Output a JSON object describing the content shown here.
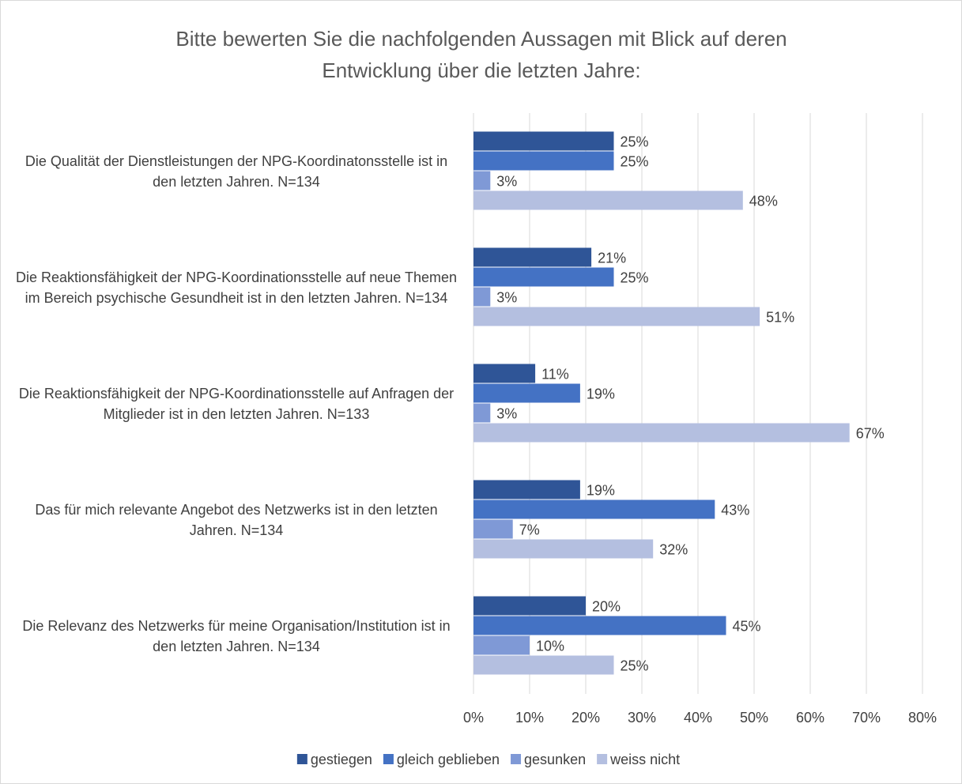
{
  "chart_data": {
    "type": "bar",
    "orientation": "horizontal",
    "title": "Bitte bewerten Sie die nachfolgenden Aussagen mit Blick auf deren Entwicklung über die letzten Jahre:",
    "categories": [
      "Die Qualität der Dienstleistungen der NPG-Koordinatonsstelle ist in den letzten Jahren. N=134",
      "Die Reaktionsfähigkeit der NPG-Koordinationsstelle auf neue Themen im Bereich psychische Gesundheit ist in den letzten Jahren. N=134",
      "Die Reaktionsfähigkeit der NPG-Koordinationsstelle auf Anfragen der Mitglieder ist in den letzten Jahren. N=133",
      "Das für mich relevante Angebot des Netzwerks ist in den letzten Jahren. N=134",
      "Die Relevanz des Netzwerks für meine Organisation/Institution ist in den letzten Jahren. N=134"
    ],
    "series": [
      {
        "name": "gestiegen",
        "color": "#2f5597",
        "values": [
          25,
          21,
          11,
          19,
          20
        ],
        "value_labels": [
          "25%",
          "21%",
          "11%",
          "19%",
          "20%"
        ]
      },
      {
        "name": "gleich geblieben",
        "color": "#4472c4",
        "values": [
          25,
          25,
          19,
          43,
          45
        ],
        "value_labels": [
          "25%",
          "25%",
          "19%",
          "43%",
          "45%"
        ]
      },
      {
        "name": "gesunken",
        "color": "#7f99d6",
        "values": [
          3,
          3,
          3,
          7,
          10
        ],
        "value_labels": [
          "3%",
          "3%",
          "3%",
          "7%",
          "10%"
        ]
      },
      {
        "name": "weiss nicht",
        "color": "#b4bfe0",
        "values": [
          48,
          51,
          67,
          32,
          25
        ],
        "value_labels": [
          "48%",
          "51%",
          "67%",
          "32%",
          "25%"
        ]
      }
    ],
    "xlim": [
      0,
      80
    ],
    "xticks": [
      {
        "value": 0,
        "label": "0%"
      },
      {
        "value": 10,
        "label": "10%"
      },
      {
        "value": 20,
        "label": "20%"
      },
      {
        "value": 30,
        "label": "30%"
      },
      {
        "value": 40,
        "label": "40%"
      },
      {
        "value": 50,
        "label": "50%"
      },
      {
        "value": 60,
        "label": "60%"
      },
      {
        "value": 70,
        "label": "70%"
      },
      {
        "value": 80,
        "label": "80%"
      }
    ],
    "grid": true,
    "legend": "bottom"
  }
}
